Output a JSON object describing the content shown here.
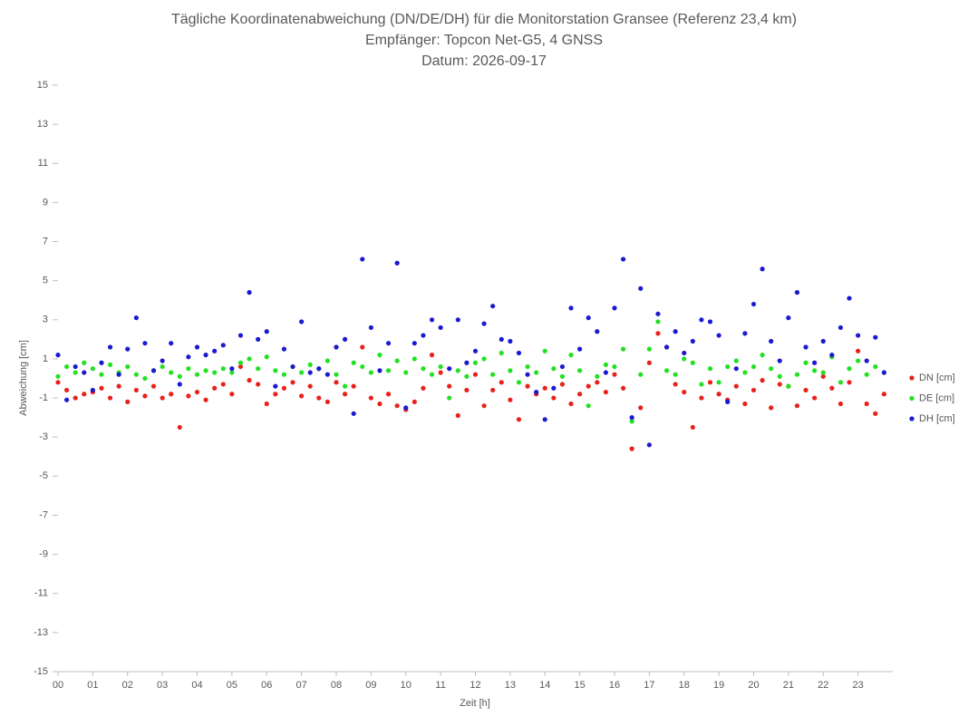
{
  "chart_data": {
    "type": "scatter",
    "title": "Tägliche Koordinatenabweichung (DN/DE/DH) für die Monitorstation Gransee (Referenz 23,4 km)",
    "subtitle": "Empfänger: Topcon Net-G5, 4 GNSS",
    "date_label": "Datum: 2026-09-17",
    "x_label": "Zeit [h]",
    "y_label": "Abweichung [cm]",
    "xlim": [
      0,
      24
    ],
    "ylim": [
      -15,
      15
    ],
    "xticks": [
      {
        "value": 0,
        "label": "00"
      },
      {
        "value": 1,
        "label": "01"
      },
      {
        "value": 2,
        "label": "02"
      },
      {
        "value": 3,
        "label": "03"
      },
      {
        "value": 4,
        "label": "04"
      },
      {
        "value": 5,
        "label": "05"
      },
      {
        "value": 6,
        "label": "06"
      },
      {
        "value": 7,
        "label": "07"
      },
      {
        "value": 8,
        "label": "08"
      },
      {
        "value": 9,
        "label": "09"
      },
      10,
      11,
      12,
      13,
      14,
      15,
      16,
      17,
      18,
      19,
      20,
      21,
      22,
      23
    ],
    "yticks": [
      -15,
      -13,
      -11,
      -9,
      -7,
      -5,
      -3,
      -1,
      1,
      3,
      5,
      7,
      9,
      11,
      13,
      15
    ],
    "legend": "right",
    "x": [
      0,
      0.25,
      0.5,
      0.75,
      1,
      1.25,
      1.5,
      1.75,
      2,
      2.25,
      2.5,
      2.75,
      3,
      3.25,
      3.5,
      3.75,
      4,
      4.25,
      4.5,
      4.75,
      5,
      5.25,
      5.5,
      5.75,
      6,
      6.25,
      6.5,
      6.75,
      7,
      7.25,
      7.5,
      7.75,
      8,
      8.25,
      8.5,
      8.75,
      9,
      9.25,
      9.5,
      9.75,
      10,
      10.25,
      10.5,
      10.75,
      11,
      11.25,
      11.5,
      11.75,
      12,
      12.25,
      12.5,
      12.75,
      13,
      13.25,
      13.5,
      13.75,
      14,
      14.25,
      14.5,
      14.75,
      15,
      15.25,
      15.5,
      15.75,
      16,
      16.25,
      16.5,
      16.75,
      17,
      17.25,
      17.5,
      17.75,
      18,
      18.25,
      18.5,
      18.75,
      19,
      19.25,
      19.5,
      19.75,
      20,
      20.25,
      20.5,
      20.75,
      21,
      21.25,
      21.5,
      21.75,
      22,
      22.25,
      22.5,
      22.75,
      23,
      23.25,
      23.5,
      23.75
    ],
    "series": [
      {
        "name": "DN [cm]",
        "color": "#e8211b",
        "values": [
          -0.2,
          -0.6,
          -1.0,
          -0.8,
          -0.7,
          -0.5,
          -1.0,
          -0.4,
          -1.2,
          -0.6,
          -0.9,
          -0.4,
          -1.0,
          -0.8,
          -2.5,
          -0.9,
          -0.7,
          -1.1,
          -0.5,
          -0.3,
          -0.8,
          0.6,
          -0.1,
          -0.3,
          -1.3,
          -0.8,
          -0.5,
          -0.2,
          -0.9,
          -0.4,
          -1.0,
          -1.2,
          -0.2,
          -0.8,
          -0.4,
          1.6,
          -1.0,
          -1.3,
          -0.8,
          -1.4,
          -1.6,
          -1.2,
          -0.5,
          1.2,
          0.3,
          -0.4,
          -1.9,
          -0.6,
          0.2,
          -1.4,
          -0.6,
          -0.2,
          -1.1,
          -2.1,
          -0.4,
          -0.8,
          -0.5,
          -1.0,
          -0.3,
          -1.3,
          -0.8,
          -0.4,
          -0.2,
          -0.7,
          0.2,
          -0.5,
          -3.6,
          -1.5,
          0.8,
          2.3,
          1.6,
          -0.3,
          -0.7,
          -2.5,
          -1.0,
          -0.2,
          -0.8,
          -1.1,
          -0.4,
          -1.3,
          -0.6,
          -0.1,
          -1.5,
          -0.3,
          -0.4,
          -1.4,
          -0.6,
          -1.0,
          0.1,
          -0.5,
          -1.3,
          -0.2,
          1.4,
          -1.3,
          -1.8,
          -0.8
        ]
      },
      {
        "name": "DE [cm]",
        "color": "#22e022",
        "values": [
          0.1,
          0.6,
          0.3,
          0.8,
          0.5,
          0.2,
          0.7,
          0.3,
          0.6,
          0.2,
          0.0,
          0.4,
          0.6,
          0.3,
          0.1,
          0.5,
          0.2,
          0.4,
          0.3,
          0.5,
          0.3,
          0.8,
          1.0,
          0.5,
          1.1,
          0.4,
          0.2,
          0.6,
          0.3,
          0.7,
          0.5,
          0.9,
          0.2,
          -0.4,
          0.8,
          0.6,
          0.3,
          1.2,
          0.4,
          0.9,
          0.3,
          1.0,
          0.5,
          0.2,
          0.6,
          -1.0,
          0.4,
          0.1,
          0.8,
          1.0,
          0.2,
          1.3,
          0.4,
          -0.2,
          0.6,
          0.3,
          1.4,
          0.5,
          0.1,
          1.2,
          0.4,
          -1.4,
          0.1,
          0.7,
          0.6,
          1.5,
          -2.2,
          0.2,
          1.5,
          2.9,
          0.4,
          0.2,
          1.0,
          0.8,
          -0.3,
          0.5,
          -0.2,
          0.6,
          0.9,
          0.3,
          0.6,
          1.2,
          0.5,
          0.1,
          -0.4,
          0.2,
          0.8,
          0.4,
          0.3,
          1.1,
          -0.2,
          0.5,
          0.9,
          0.2,
          0.6,
          0.3
        ]
      },
      {
        "name": "DH [cm]",
        "color": "#1a1ad0",
        "values": [
          1.2,
          -1.1,
          0.6,
          0.3,
          -0.6,
          0.8,
          1.6,
          0.2,
          1.5,
          3.1,
          1.8,
          0.4,
          0.9,
          1.8,
          -0.3,
          1.1,
          1.6,
          1.2,
          1.4,
          1.7,
          0.5,
          2.2,
          4.4,
          2.0,
          2.4,
          -0.4,
          1.5,
          0.6,
          2.9,
          0.3,
          0.5,
          0.2,
          1.6,
          2.0,
          -1.8,
          6.1,
          2.6,
          0.4,
          1.8,
          5.9,
          -1.5,
          1.8,
          2.2,
          3.0,
          2.6,
          0.5,
          3.0,
          0.8,
          1.4,
          2.8,
          3.7,
          2.0,
          1.9,
          1.3,
          0.2,
          -0.7,
          -2.1,
          -0.5,
          0.6,
          3.6,
          1.5,
          3.1,
          2.4,
          0.3,
          3.6,
          6.1,
          -2.0,
          4.6,
          -3.4,
          3.3,
          1.6,
          2.4,
          1.3,
          1.9,
          3.0,
          2.9,
          2.2,
          -1.2,
          0.5,
          2.3,
          3.8,
          5.6,
          1.9,
          0.9,
          3.1,
          4.4,
          1.6,
          0.8,
          1.9,
          1.2,
          2.6,
          4.1,
          2.2,
          0.9,
          2.1,
          0.3
        ]
      }
    ]
  }
}
